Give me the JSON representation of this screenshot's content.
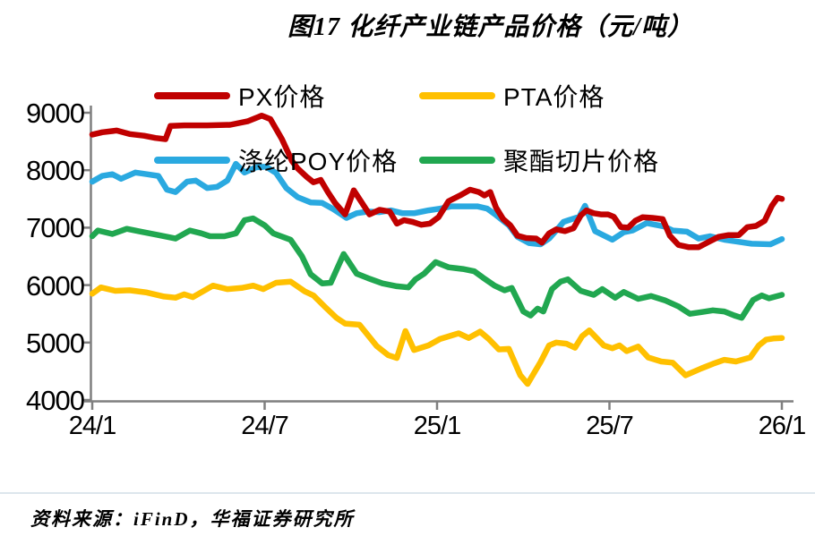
{
  "title": "图17 化纤产业链产品价格（元/吨）",
  "source_note": "资料来源：iFinD，华福证券研究所",
  "chart_data": {
    "type": "line",
    "title": "图17 化纤产业链产品价格（元/吨）",
    "unit": "元/吨",
    "grid": false,
    "legend_position": "top-inside",
    "axis_color": "#7f7f7f",
    "y_axis": {
      "min": 4000,
      "max": 9000,
      "ticks": [
        4000,
        5000,
        6000,
        7000,
        8000,
        9000
      ]
    },
    "x_axis": {
      "tick_labels": [
        "24/1",
        "24/7",
        "25/1",
        "25/7",
        "26/1"
      ],
      "tick_months": [
        0,
        6,
        12,
        18,
        24
      ]
    },
    "draw_order": [
      1,
      3,
      2,
      0
    ],
    "series": [
      {
        "name": "PX价格",
        "color": "#c00000",
        "points": [
          [
            0,
            8620
          ],
          [
            0.35,
            8660
          ],
          [
            0.85,
            8690
          ],
          [
            1.3,
            8630
          ],
          [
            1.8,
            8600
          ],
          [
            2.2,
            8560
          ],
          [
            2.55,
            8540
          ],
          [
            2.72,
            8770
          ],
          [
            3.2,
            8780
          ],
          [
            4.0,
            8780
          ],
          [
            4.8,
            8790
          ],
          [
            5.4,
            8850
          ],
          [
            5.9,
            8950
          ],
          [
            6.2,
            8890
          ],
          [
            6.6,
            8540
          ],
          [
            6.95,
            8160
          ],
          [
            7.15,
            8030
          ],
          [
            7.45,
            7890
          ],
          [
            7.7,
            7790
          ],
          [
            7.95,
            7830
          ],
          [
            8.2,
            7620
          ],
          [
            8.45,
            7430
          ],
          [
            8.8,
            7230
          ],
          [
            9.1,
            7650
          ],
          [
            9.4,
            7420
          ],
          [
            9.65,
            7230
          ],
          [
            10.0,
            7310
          ],
          [
            10.35,
            7280
          ],
          [
            10.6,
            7070
          ],
          [
            10.85,
            7130
          ],
          [
            11.15,
            7100
          ],
          [
            11.45,
            7050
          ],
          [
            11.75,
            7070
          ],
          [
            12.05,
            7180
          ],
          [
            12.4,
            7460
          ],
          [
            12.8,
            7560
          ],
          [
            13.15,
            7660
          ],
          [
            13.45,
            7620
          ],
          [
            13.65,
            7560
          ],
          [
            13.85,
            7620
          ],
          [
            14.05,
            7350
          ],
          [
            14.3,
            7150
          ],
          [
            14.55,
            7040
          ],
          [
            14.8,
            6860
          ],
          [
            15.1,
            6820
          ],
          [
            15.45,
            6810
          ],
          [
            15.65,
            6740
          ],
          [
            15.9,
            6900
          ],
          [
            16.15,
            6970
          ],
          [
            16.45,
            6940
          ],
          [
            16.75,
            6990
          ],
          [
            17.0,
            7210
          ],
          [
            17.2,
            7300
          ],
          [
            17.45,
            7250
          ],
          [
            17.7,
            7230
          ],
          [
            17.95,
            7230
          ],
          [
            18.15,
            7190
          ],
          [
            18.4,
            7010
          ],
          [
            18.65,
            7000
          ],
          [
            18.9,
            7120
          ],
          [
            19.15,
            7180
          ],
          [
            19.5,
            7170
          ],
          [
            19.85,
            7150
          ],
          [
            20.1,
            6860
          ],
          [
            20.4,
            6700
          ],
          [
            20.75,
            6660
          ],
          [
            21.1,
            6660
          ],
          [
            21.45,
            6750
          ],
          [
            21.8,
            6840
          ],
          [
            22.15,
            6870
          ],
          [
            22.5,
            6870
          ],
          [
            22.8,
            7010
          ],
          [
            23.1,
            7030
          ],
          [
            23.4,
            7120
          ],
          [
            23.65,
            7380
          ],
          [
            23.85,
            7520
          ],
          [
            24,
            7500
          ]
        ]
      },
      {
        "name": "PTA价格",
        "color": "#ffc000",
        "points": [
          [
            0,
            5850
          ],
          [
            0.3,
            5960
          ],
          [
            0.8,
            5900
          ],
          [
            1.3,
            5910
          ],
          [
            1.9,
            5870
          ],
          [
            2.5,
            5800
          ],
          [
            2.9,
            5780
          ],
          [
            3.2,
            5840
          ],
          [
            3.5,
            5790
          ],
          [
            4.2,
            5990
          ],
          [
            4.7,
            5930
          ],
          [
            5.2,
            5950
          ],
          [
            5.6,
            5990
          ],
          [
            5.95,
            5930
          ],
          [
            6.4,
            6040
          ],
          [
            6.9,
            6060
          ],
          [
            7.4,
            5890
          ],
          [
            7.7,
            5820
          ],
          [
            8.1,
            5620
          ],
          [
            8.5,
            5430
          ],
          [
            8.8,
            5330
          ],
          [
            9.3,
            5310
          ],
          [
            9.9,
            4940
          ],
          [
            10.3,
            4780
          ],
          [
            10.6,
            4730
          ],
          [
            10.9,
            5200
          ],
          [
            11.2,
            4870
          ],
          [
            11.7,
            4950
          ],
          [
            12.1,
            5060
          ],
          [
            12.75,
            5160
          ],
          [
            13.1,
            5080
          ],
          [
            13.5,
            5190
          ],
          [
            13.8,
            5060
          ],
          [
            14.15,
            4880
          ],
          [
            14.5,
            4890
          ],
          [
            14.9,
            4430
          ],
          [
            15.15,
            4280
          ],
          [
            15.6,
            4660
          ],
          [
            15.9,
            4950
          ],
          [
            16.15,
            5000
          ],
          [
            16.5,
            4980
          ],
          [
            16.8,
            4910
          ],
          [
            17.05,
            5110
          ],
          [
            17.3,
            5210
          ],
          [
            17.8,
            4950
          ],
          [
            18.1,
            4900
          ],
          [
            18.35,
            4950
          ],
          [
            18.6,
            4850
          ],
          [
            19.0,
            4930
          ],
          [
            19.35,
            4740
          ],
          [
            19.8,
            4670
          ],
          [
            20.2,
            4650
          ],
          [
            20.65,
            4430
          ],
          [
            21.2,
            4550
          ],
          [
            21.6,
            4630
          ],
          [
            22.0,
            4700
          ],
          [
            22.4,
            4670
          ],
          [
            22.9,
            4740
          ],
          [
            23.2,
            4950
          ],
          [
            23.45,
            5050
          ],
          [
            23.7,
            5070
          ],
          [
            24,
            5080
          ]
        ]
      },
      {
        "name": "涤纶POY价格",
        "color": "#2aa9e0",
        "points": [
          [
            0,
            7800
          ],
          [
            0.35,
            7900
          ],
          [
            0.7,
            7930
          ],
          [
            1.0,
            7850
          ],
          [
            1.5,
            7960
          ],
          [
            1.9,
            7930
          ],
          [
            2.3,
            7900
          ],
          [
            2.6,
            7660
          ],
          [
            2.9,
            7620
          ],
          [
            3.3,
            7800
          ],
          [
            3.6,
            7820
          ],
          [
            4.0,
            7690
          ],
          [
            4.35,
            7710
          ],
          [
            4.7,
            7820
          ],
          [
            5.0,
            8110
          ],
          [
            5.3,
            7960
          ],
          [
            5.7,
            8050
          ],
          [
            6.05,
            8060
          ],
          [
            6.4,
            7950
          ],
          [
            6.75,
            7690
          ],
          [
            7.15,
            7530
          ],
          [
            7.6,
            7440
          ],
          [
            8.0,
            7430
          ],
          [
            8.4,
            7320
          ],
          [
            8.85,
            7170
          ],
          [
            9.2,
            7250
          ],
          [
            9.6,
            7280
          ],
          [
            10.0,
            7270
          ],
          [
            10.4,
            7300
          ],
          [
            10.8,
            7250
          ],
          [
            11.2,
            7250
          ],
          [
            11.7,
            7300
          ],
          [
            12.1,
            7330
          ],
          [
            12.5,
            7370
          ],
          [
            13.0,
            7370
          ],
          [
            13.4,
            7370
          ],
          [
            13.75,
            7330
          ],
          [
            14.05,
            7220
          ],
          [
            14.5,
            7040
          ],
          [
            14.8,
            6840
          ],
          [
            15.2,
            6730
          ],
          [
            15.6,
            6710
          ],
          [
            15.9,
            6810
          ],
          [
            16.15,
            6950
          ],
          [
            16.4,
            7100
          ],
          [
            16.7,
            7150
          ],
          [
            16.95,
            7190
          ],
          [
            17.15,
            7380
          ],
          [
            17.5,
            6940
          ],
          [
            18.1,
            6790
          ],
          [
            18.5,
            6920
          ],
          [
            18.8,
            6950
          ],
          [
            19.3,
            7080
          ],
          [
            19.9,
            7020
          ],
          [
            20.2,
            6950
          ],
          [
            20.7,
            6930
          ],
          [
            21.1,
            6810
          ],
          [
            21.5,
            6850
          ],
          [
            22.0,
            6790
          ],
          [
            22.4,
            6760
          ],
          [
            22.95,
            6720
          ],
          [
            23.6,
            6710
          ],
          [
            24,
            6800
          ]
        ]
      },
      {
        "name": "聚酯切片价格",
        "color": "#21a750",
        "points": [
          [
            0,
            6850
          ],
          [
            0.2,
            6950
          ],
          [
            0.7,
            6890
          ],
          [
            1.2,
            6980
          ],
          [
            1.7,
            6930
          ],
          [
            2.3,
            6870
          ],
          [
            2.9,
            6810
          ],
          [
            3.4,
            6950
          ],
          [
            3.8,
            6900
          ],
          [
            4.1,
            6850
          ],
          [
            4.6,
            6850
          ],
          [
            5.0,
            6900
          ],
          [
            5.3,
            7130
          ],
          [
            5.6,
            7160
          ],
          [
            6.0,
            7040
          ],
          [
            6.3,
            6900
          ],
          [
            6.9,
            6790
          ],
          [
            7.3,
            6500
          ],
          [
            7.6,
            6190
          ],
          [
            8.0,
            6030
          ],
          [
            8.3,
            6040
          ],
          [
            8.75,
            6540
          ],
          [
            9.2,
            6200
          ],
          [
            9.6,
            6120
          ],
          [
            10.1,
            6030
          ],
          [
            10.6,
            5980
          ],
          [
            11.0,
            5960
          ],
          [
            11.25,
            6100
          ],
          [
            11.55,
            6200
          ],
          [
            11.95,
            6400
          ],
          [
            12.4,
            6310
          ],
          [
            12.9,
            6280
          ],
          [
            13.3,
            6240
          ],
          [
            13.6,
            6130
          ],
          [
            14.0,
            5990
          ],
          [
            14.35,
            5910
          ],
          [
            14.6,
            5950
          ],
          [
            15.0,
            5540
          ],
          [
            15.25,
            5470
          ],
          [
            15.5,
            5590
          ],
          [
            15.7,
            5540
          ],
          [
            16.0,
            5930
          ],
          [
            16.3,
            6060
          ],
          [
            16.55,
            6100
          ],
          [
            17.0,
            5900
          ],
          [
            17.45,
            5830
          ],
          [
            17.75,
            5930
          ],
          [
            18.2,
            5780
          ],
          [
            18.5,
            5880
          ],
          [
            19.0,
            5760
          ],
          [
            19.45,
            5810
          ],
          [
            19.95,
            5730
          ],
          [
            20.4,
            5630
          ],
          [
            20.8,
            5500
          ],
          [
            21.2,
            5530
          ],
          [
            21.6,
            5560
          ],
          [
            22.0,
            5540
          ],
          [
            22.35,
            5470
          ],
          [
            22.6,
            5430
          ],
          [
            23.0,
            5740
          ],
          [
            23.3,
            5820
          ],
          [
            23.55,
            5770
          ],
          [
            24,
            5830
          ]
        ]
      }
    ]
  }
}
